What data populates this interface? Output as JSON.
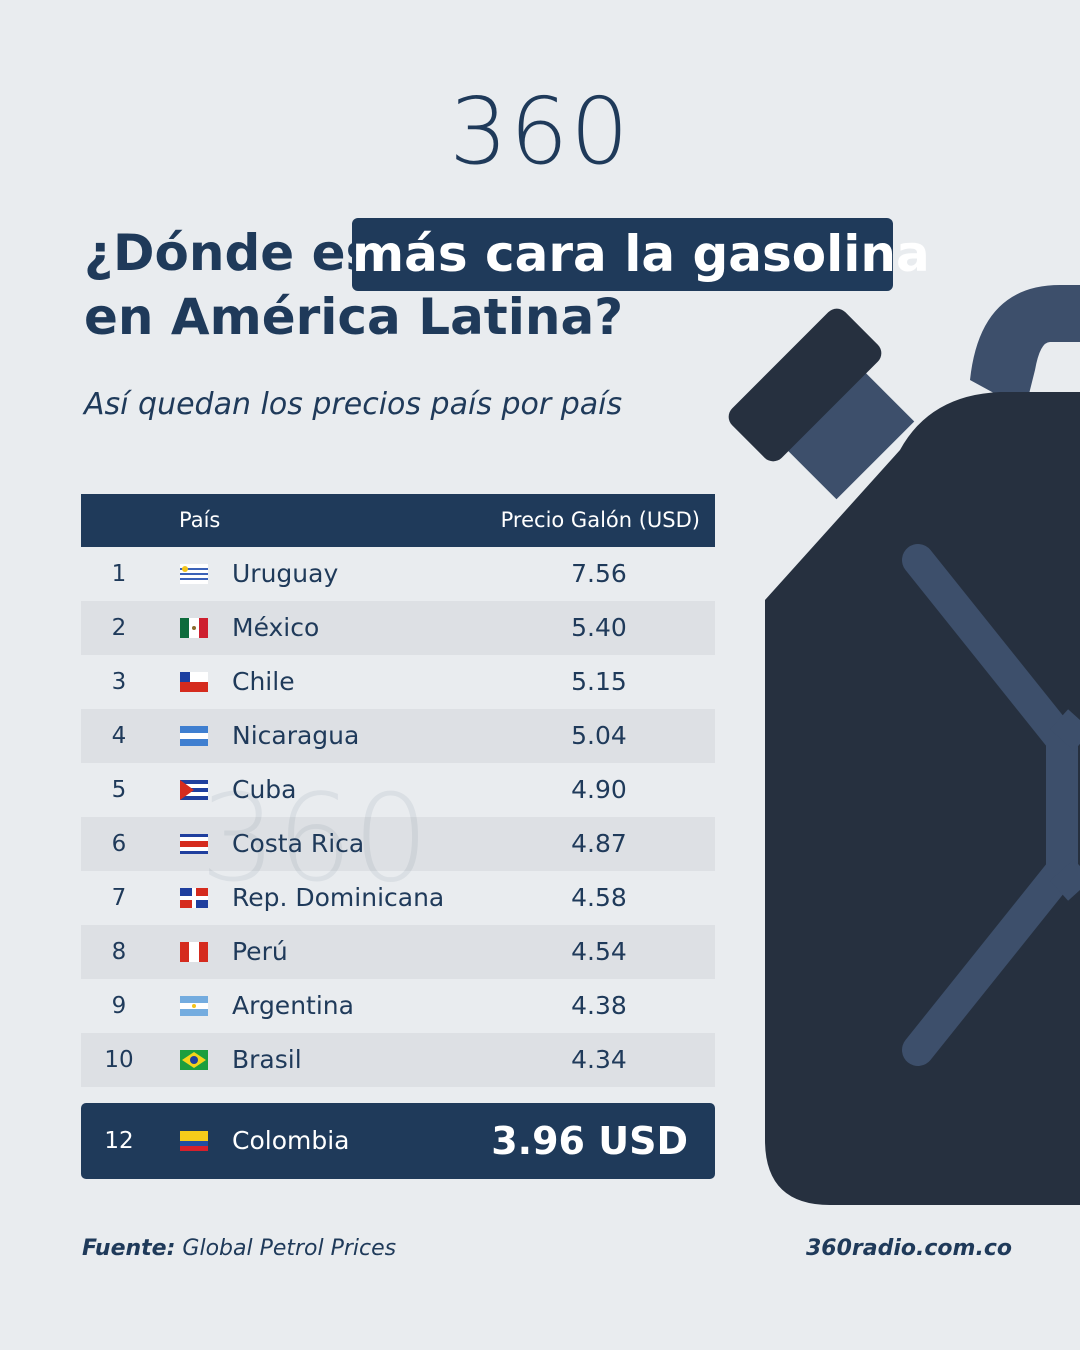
{
  "logo": "360",
  "header": {
    "title_before": "¿Dónde es",
    "title_highlight": "más cara la gasolina",
    "title_line2": "en América Latina?",
    "subtitle": "Así quedan los precios país por país"
  },
  "table": {
    "columns": [
      "País",
      "Precio Galón (USD)"
    ],
    "watermark": "360",
    "rows": [
      [
        1,
        "Uruguay",
        "7.56"
      ],
      [
        2,
        "México",
        "5.40"
      ],
      [
        3,
        "Chile",
        "5.15"
      ],
      [
        4,
        "Nicaragua",
        "5.04"
      ],
      [
        5,
        "Cuba",
        "4.90"
      ],
      [
        6,
        "Costa Rica",
        "4.87"
      ],
      [
        7,
        "Rep. Dominicana",
        "4.58"
      ],
      [
        8,
        "Perú",
        "4.54"
      ],
      [
        9,
        "Argentina",
        "4.38"
      ],
      [
        10,
        "Brasil",
        "4.34"
      ]
    ],
    "highlight": [
      12,
      "Colombia",
      "3.96 USD"
    ]
  },
  "footer": {
    "source_label": "Fuente:",
    "source": "Global Petrol Prices",
    "website": "360radio.com.co"
  }
}
